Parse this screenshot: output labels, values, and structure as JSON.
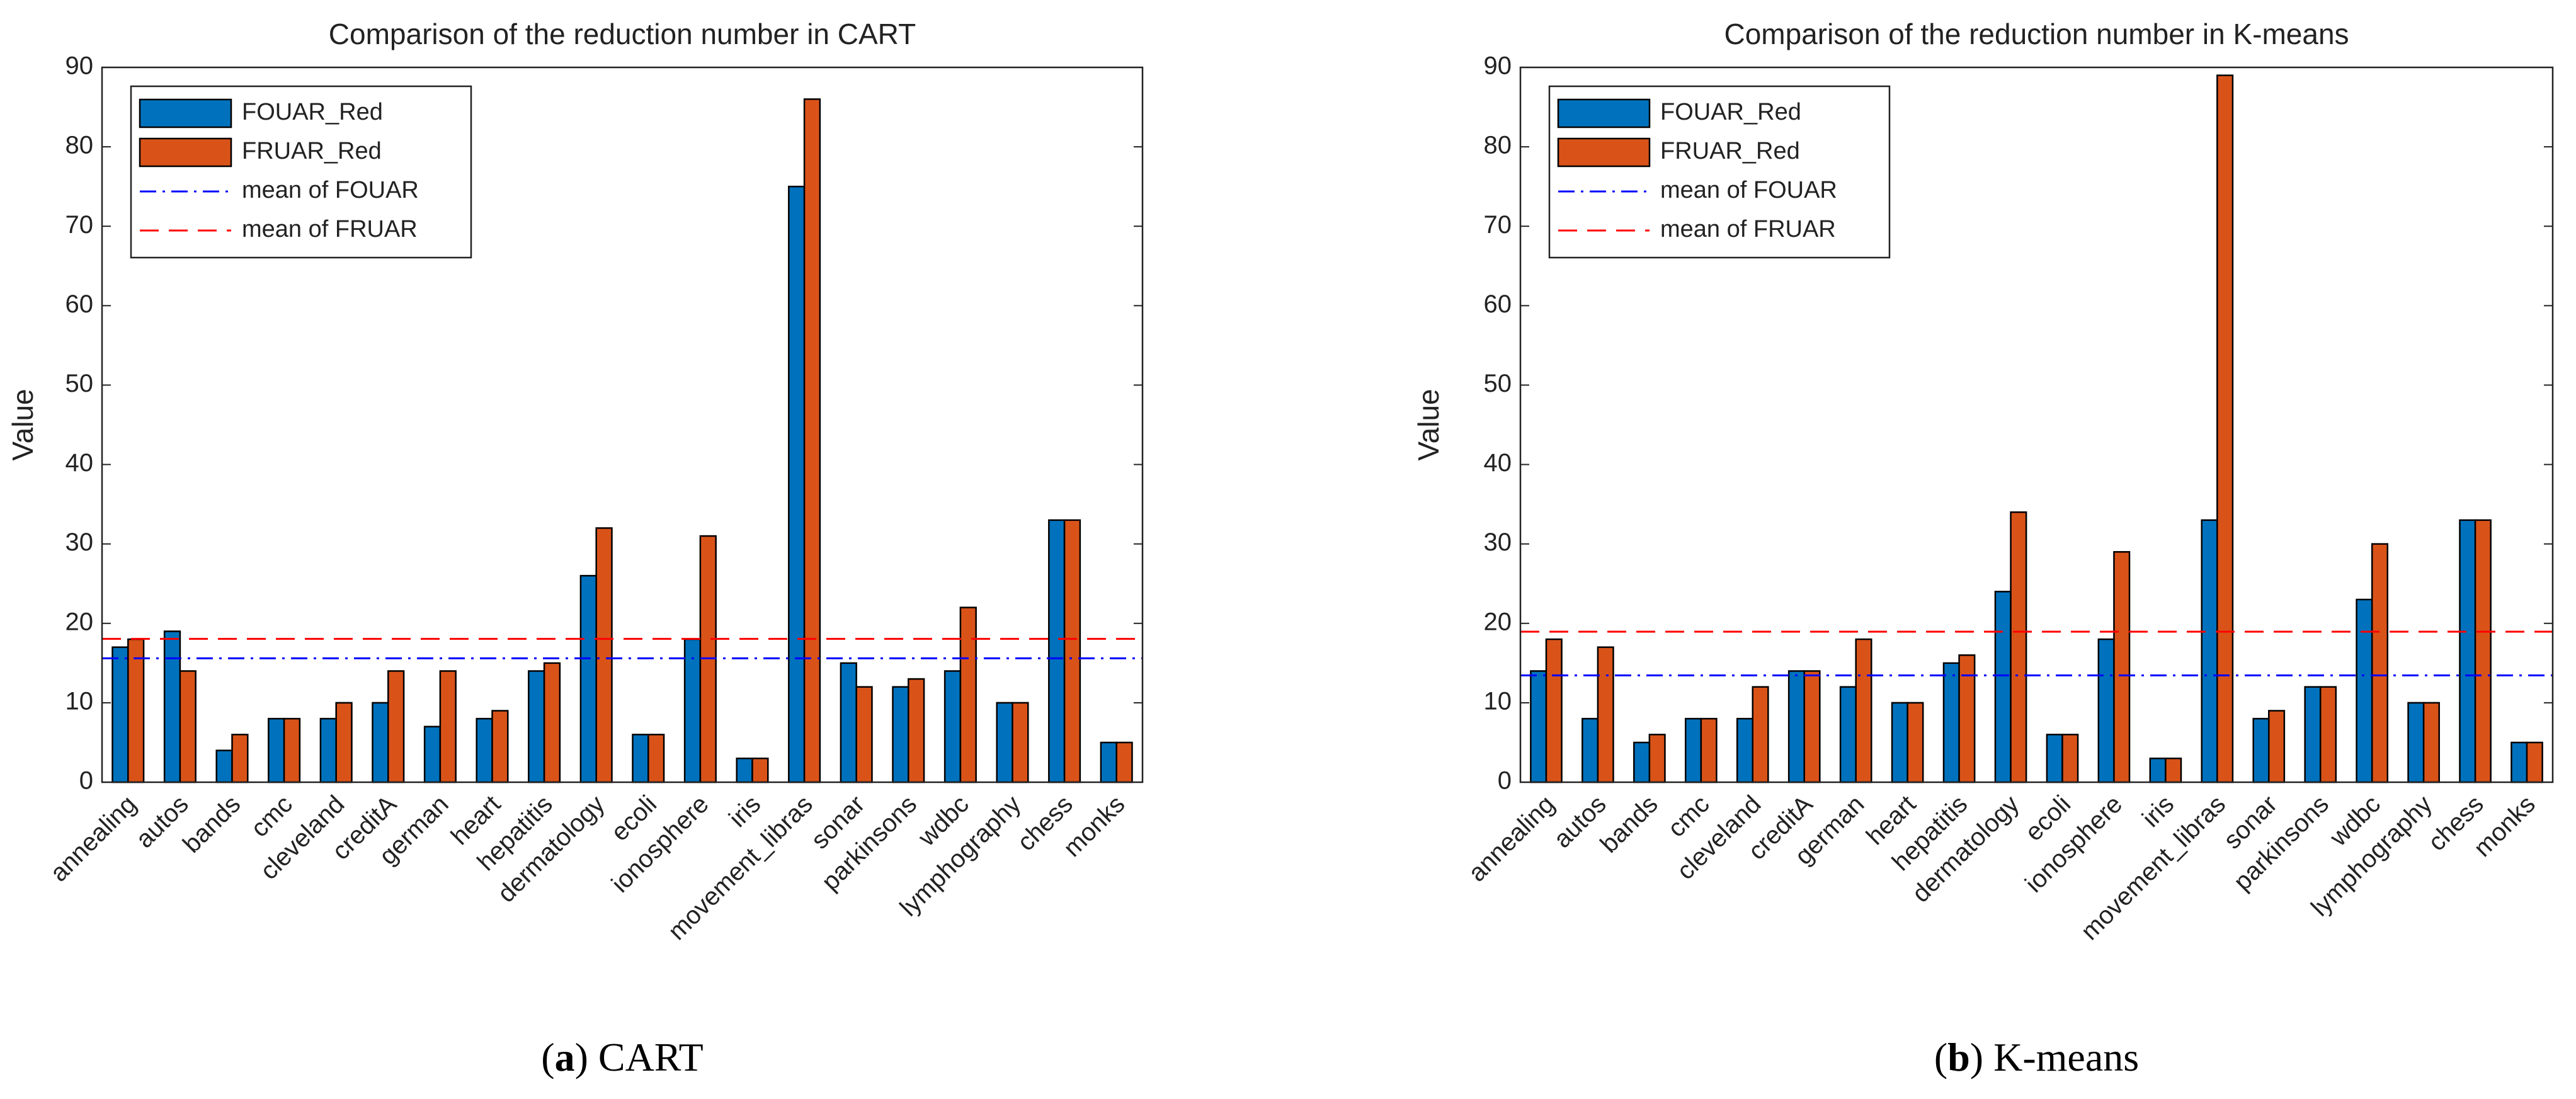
{
  "chart_data": [
    {
      "type": "bar",
      "title": "Comparison of the reduction number in CART",
      "y_label": "Value",
      "categories": [
        "annealing",
        "autos",
        "bands",
        "cmc",
        "cleveland",
        "creditA",
        "german",
        "heart",
        "hepatitis",
        "dermatology",
        "ecoli",
        "ionosphere",
        "iris",
        "movement_libras",
        "sonar",
        "parkinsons",
        "wdbc",
        "lymphography",
        "chess",
        "monks"
      ],
      "series": [
        {
          "name": "FOUAR_Red",
          "color": "#0072bd",
          "values": [
            17,
            19,
            4,
            8,
            8,
            10,
            7,
            8,
            14,
            26,
            6,
            18,
            3,
            75,
            15,
            12,
            14,
            10,
            33,
            5
          ]
        },
        {
          "name": "FRUAR_Red",
          "color": "#d95319",
          "values": [
            18,
            14,
            6,
            8,
            10,
            14,
            14,
            9,
            15,
            32,
            6,
            31,
            3,
            86,
            12,
            13,
            22,
            10,
            33,
            5
          ]
        }
      ],
      "mean_lines": [
        {
          "name": "mean of FOUAR",
          "color": "#0000ff",
          "dash": "dashdot",
          "value": 15.6
        },
        {
          "name": "mean of FRUAR",
          "color": "#ff0000",
          "dash": "dashed",
          "value": 18.05
        }
      ],
      "ylim": [
        0,
        90
      ],
      "yticks": [
        0,
        10,
        20,
        30,
        40,
        50,
        60,
        70,
        80,
        90
      ],
      "legend": "upper left",
      "caption": [
        "(",
        "a",
        ") CART"
      ]
    },
    {
      "type": "bar",
      "title": "Comparison of the reduction number in K-means",
      "y_label": "Value",
      "categories": [
        "annealing",
        "autos",
        "bands",
        "cmc",
        "cleveland",
        "creditA",
        "german",
        "heart",
        "hepatitis",
        "dermatology",
        "ecoli",
        "ionosphere",
        "iris",
        "movement_libras",
        "sonar",
        "parkinsons",
        "wdbc",
        "lymphography",
        "chess",
        "monks"
      ],
      "series": [
        {
          "name": "FOUAR_Red",
          "color": "#0072bd",
          "values": [
            14,
            8,
            5,
            8,
            8,
            14,
            12,
            10,
            15,
            24,
            6,
            18,
            3,
            33,
            8,
            12,
            23,
            10,
            33,
            5
          ]
        },
        {
          "name": "FRUAR_Red",
          "color": "#d95319",
          "values": [
            18,
            17,
            6,
            8,
            12,
            14,
            18,
            10,
            16,
            34,
            6,
            29,
            3,
            89,
            9,
            12,
            30,
            10,
            33,
            5
          ]
        }
      ],
      "mean_lines": [
        {
          "name": "mean of FOUAR",
          "color": "#0000ff",
          "dash": "dashdot",
          "value": 13.45
        },
        {
          "name": "mean of FRUAR",
          "color": "#ff0000",
          "dash": "dashed",
          "value": 18.95
        }
      ],
      "ylim": [
        0,
        90
      ],
      "yticks": [
        0,
        10,
        20,
        30,
        40,
        50,
        60,
        70,
        80,
        90
      ],
      "legend": "upper left",
      "caption": [
        "(",
        "b",
        ") K-means"
      ]
    }
  ]
}
